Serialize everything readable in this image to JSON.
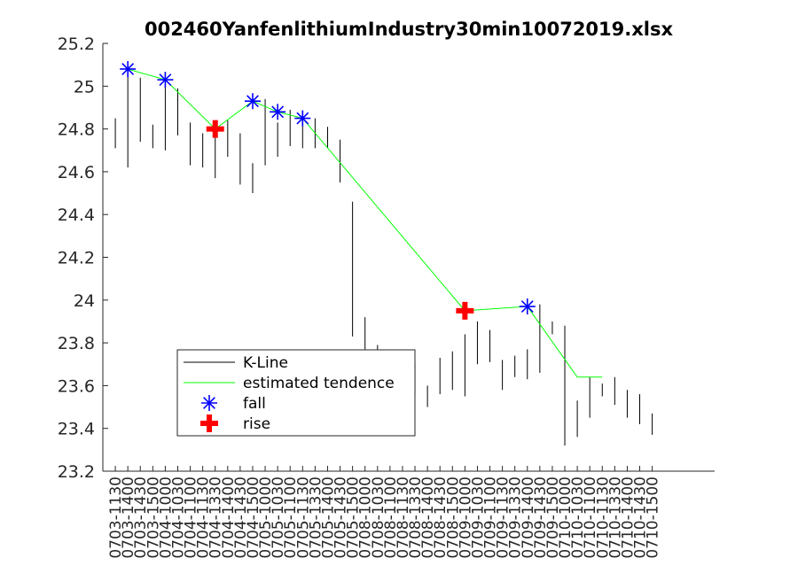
{
  "chart_data": {
    "type": "line",
    "title": "002460YanfenlithiumIndustry30min10072019.xlsx",
    "xlabel": "",
    "ylabel": "",
    "ylim": [
      23.2,
      25.2
    ],
    "yticks": [
      "23.2",
      "23.4",
      "23.6",
      "23.8",
      "24",
      "24.2",
      "24.4",
      "24.6",
      "24.8",
      "25",
      "25.2"
    ],
    "xlim": [
      0,
      49
    ],
    "categories": [
      "0703-1130",
      "0703-1400",
      "0703-1430",
      "0703-1500",
      "0704-1000",
      "0704-1030",
      "0704-1100",
      "0704-1130",
      "0704-1330",
      "0704-1400",
      "0704-1430",
      "0704-1500",
      "0705-1000",
      "0705-1030",
      "0705-1100",
      "0705-1130",
      "0705-1330",
      "0705-1400",
      "0705-1430",
      "0705-1500",
      "0708-1000",
      "0708-1030",
      "0708-1100",
      "0708-1130",
      "0708-1330",
      "0708-1400",
      "0708-1430",
      "0708-1500",
      "0709-1000",
      "0709-1030",
      "0709-1100",
      "0709-1130",
      "0709-1330",
      "0709-1400",
      "0709-1430",
      "0709-1500",
      "0710-1000",
      "0710-1030",
      "0710-1100",
      "0710-1130",
      "0710-1330",
      "0710-1400",
      "0710-1430",
      "0710-1500"
    ],
    "kline": {
      "name": "K-Line",
      "color": "#000000",
      "low": [
        24.71,
        24.62,
        24.74,
        24.71,
        24.7,
        24.77,
        24.63,
        24.62,
        24.57,
        24.67,
        24.54,
        24.5,
        24.63,
        24.67,
        24.72,
        24.71,
        24.71,
        24.71,
        24.55,
        23.83,
        23.77,
        23.72,
        23.65,
        23.7,
        23.56,
        23.5,
        23.56,
        23.58,
        23.55,
        23.7,
        23.71,
        23.58,
        23.64,
        23.63,
        23.66,
        23.84,
        23.32,
        23.36,
        23.45,
        23.55,
        23.51,
        23.45,
        23.42,
        23.37
      ],
      "high": [
        24.85,
        25.09,
        25.04,
        24.82,
        25.0,
        24.99,
        24.83,
        24.78,
        24.76,
        24.84,
        24.78,
        24.64,
        24.94,
        24.83,
        24.89,
        24.85,
        24.85,
        24.81,
        24.75,
        24.46,
        23.92,
        23.79,
        23.72,
        23.74,
        23.71,
        23.6,
        23.73,
        23.76,
        23.84,
        23.9,
        23.86,
        23.72,
        23.74,
        23.77,
        23.98,
        23.9,
        23.88,
        23.53,
        23.64,
        23.61,
        23.64,
        23.58,
        23.56,
        23.47
      ]
    },
    "tendence": {
      "name": "estimated tendence",
      "color": "#00ff00",
      "x": [
        2,
        5,
        9,
        12,
        14,
        16,
        29,
        34,
        38,
        40
      ],
      "y": [
        25.08,
        25.03,
        24.8,
        24.93,
        24.88,
        24.85,
        23.95,
        23.97,
        23.64,
        23.64
      ]
    },
    "fall": {
      "name": "fall",
      "color": "#0000ff",
      "marker": "asterisk",
      "x": [
        2,
        5,
        12,
        14,
        16,
        34
      ],
      "y": [
        25.08,
        25.03,
        24.93,
        24.88,
        24.85,
        23.97
      ]
    },
    "rise": {
      "name": "rise",
      "color": "#ff0000",
      "marker": "plus",
      "x": [
        9,
        29
      ],
      "y": [
        24.8,
        23.95
      ]
    },
    "legend": [
      "K-Line",
      "estimated tendence",
      "fall",
      "rise"
    ],
    "legend_position": "lower-left",
    "grid": false
  }
}
